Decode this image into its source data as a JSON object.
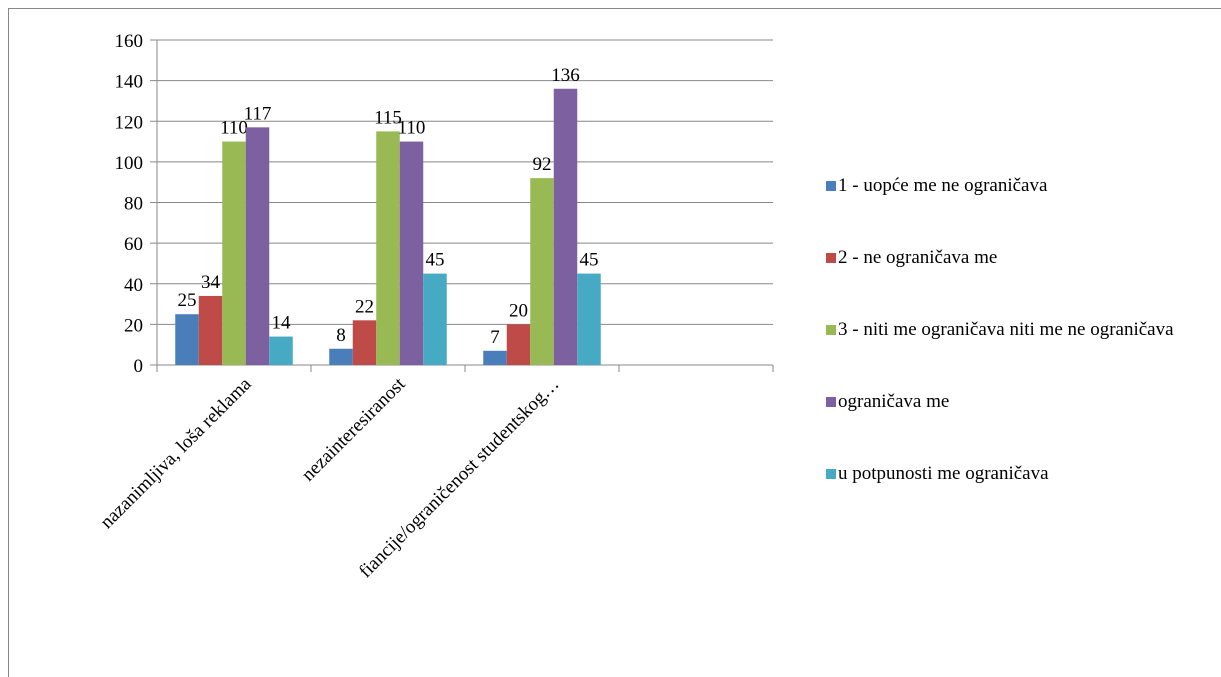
{
  "chart_data": {
    "type": "bar",
    "categories": [
      "nazanimljiva, loša reklama",
      "nezainteresiranost",
      "fiancije/ograničenost studentskog…",
      null
    ],
    "series": [
      {
        "name": "1 - uopće me ne ograničava",
        "color": "#4a7ebb",
        "values": [
          25,
          8,
          7,
          null
        ]
      },
      {
        "name": "2 - ne ograničava me",
        "color": "#be4b48",
        "values": [
          34,
          22,
          20,
          null
        ]
      },
      {
        "name": "3 - niti me ograničava niti me ne ograničava",
        "color": "#98b954",
        "values": [
          110,
          115,
          92,
          null
        ]
      },
      {
        "name": "ograničava me",
        "color": "#7d60a0",
        "values": [
          117,
          110,
          136,
          null
        ]
      },
      {
        "name": "u potpunosti me ograničava",
        "color": "#46aac5",
        "values": [
          14,
          45,
          45,
          null
        ]
      }
    ],
    "ylim": [
      0,
      160
    ],
    "yticks": [
      0,
      20,
      40,
      60,
      80,
      100,
      120,
      140,
      160
    ],
    "grid": true,
    "legend": "right"
  }
}
